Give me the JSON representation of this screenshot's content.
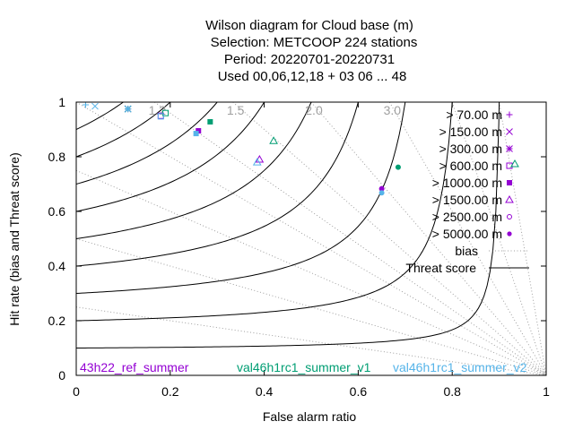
{
  "chart_data": {
    "type": "scatter",
    "title_lines": [
      "Wilson diagram  for Cloud base (m)",
      "Selection: METCOOP    224 stations",
      "Period: 20220701-20220731",
      "Used  00,06,12,18  + 03 06 ... 48"
    ],
    "xlabel": "False alarm ratio",
    "ylabel": "Hit rate (bias and Threat score)",
    "xlim": [
      0,
      1
    ],
    "ylim": [
      0,
      1
    ],
    "x_ticks": [
      "0",
      "0.2",
      "0.4",
      "0.6",
      "0.8",
      "1"
    ],
    "y_ticks": [
      "0",
      "0.2",
      "0.4",
      "0.6",
      "0.8",
      "1"
    ],
    "bias_values": [
      1.2,
      1.5,
      2.0,
      3.0,
      0.25,
      0.5,
      0.75,
      1.0,
      5.0,
      10.0
    ],
    "bias_labels": [
      "1.2",
      "1.5",
      "2.0",
      "3.0"
    ],
    "threat_scores": [
      0.1,
      0.2,
      0.3,
      0.4,
      0.5,
      0.6,
      0.7,
      0.8,
      0.9
    ],
    "legend": {
      "placement": "top-right",
      "classes": [
        "> 70.00 m",
        "> 150.00 m",
        "> 300.00 m",
        "> 600.00 m",
        "> 1000.00 m",
        "> 1500.00 m",
        "> 2500.00 m",
        "> 5000.00 m"
      ],
      "bias_label": "bias",
      "threat_label": "Threat score"
    },
    "series": [
      {
        "name": "43h22_ref_summer",
        "label_display": "43h22_ref_summer",
        "color": "#9400d3",
        "points": [
          {
            "cls": 0,
            "x": 0.02,
            "y": 0.99
          },
          {
            "cls": 1,
            "x": 0.11,
            "y": 0.975
          },
          {
            "cls": 2,
            "x": 0.11,
            "y": 0.975
          },
          {
            "cls": 3,
            "x": 0.18,
            "y": 0.95
          },
          {
            "cls": 4,
            "x": 0.26,
            "y": 0.895
          },
          {
            "cls": 5,
            "x": 0.39,
            "y": 0.79
          },
          {
            "cls": 6,
            "x": 0.65,
            "y": 0.683
          },
          {
            "cls": 7,
            "x": 0.65,
            "y": 0.683
          }
        ]
      },
      {
        "name": "val46h1rc1_summer_v1",
        "label_display": "val46h1rc1_summer_v1",
        "color": "#009e73",
        "points": [
          {
            "cls": 0,
            "x": 0.02,
            "y": 0.99
          },
          {
            "cls": 1,
            "x": 0.11,
            "y": 0.975
          },
          {
            "cls": 2,
            "x": 0.11,
            "y": 0.975
          },
          {
            "cls": 3,
            "x": 0.19,
            "y": 0.96
          },
          {
            "cls": 4,
            "x": 0.285,
            "y": 0.928
          },
          {
            "cls": 5,
            "x": 0.42,
            "y": 0.858
          },
          {
            "cls": 6,
            "x": 0.685,
            "y": 0.762
          },
          {
            "cls": 7,
            "x": 0.685,
            "y": 0.762
          }
        ]
      },
      {
        "name": "val46h1rc1_summer_v2",
        "label_display": "val46h1rc1_summer_v2",
        "color": "#56b4e9",
        "points": [
          {
            "cls": 0,
            "x": 0.02,
            "y": 0.99
          },
          {
            "cls": 1,
            "x": 0.04,
            "y": 0.985
          },
          {
            "cls": 2,
            "x": 0.11,
            "y": 0.975
          },
          {
            "cls": 3,
            "x": 0.18,
            "y": 0.948
          },
          {
            "cls": 4,
            "x": 0.255,
            "y": 0.885
          },
          {
            "cls": 5,
            "x": 0.385,
            "y": 0.78
          },
          {
            "cls": 6,
            "x": 0.65,
            "y": 0.668
          },
          {
            "cls": 7,
            "x": 0.65,
            "y": 0.668
          }
        ]
      }
    ]
  }
}
